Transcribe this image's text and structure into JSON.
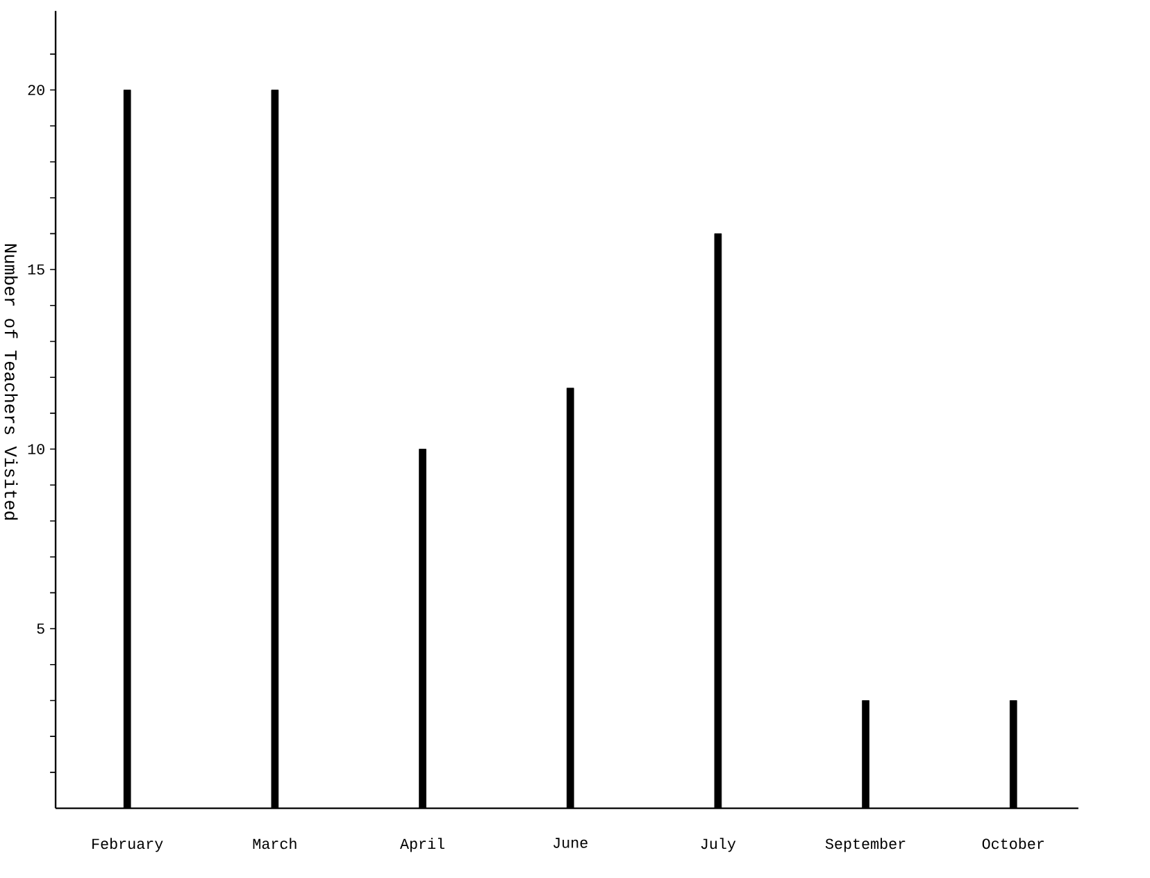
{
  "chart_data": {
    "type": "bar",
    "ylabel": "Number of Teachers Visited",
    "categories": [
      "February",
      "March",
      "April",
      "June",
      "July",
      "September",
      "October"
    ],
    "values": [
      20,
      20,
      10,
      11.7,
      16,
      3,
      3
    ],
    "color": "#000000",
    "ylim": [
      0,
      22.2
    ],
    "yticks": [
      {
        "value": 1,
        "label": null
      },
      {
        "value": 2,
        "label": null
      },
      {
        "value": 3,
        "label": null
      },
      {
        "value": 4,
        "label": null
      },
      5,
      {
        "value": 6,
        "label": null
      },
      {
        "value": 7,
        "label": null
      },
      {
        "value": 8,
        "label": null
      },
      {
        "value": 9,
        "label": null
      },
      10,
      {
        "value": 11,
        "label": null
      },
      {
        "value": 12,
        "label": null
      },
      {
        "value": 13,
        "label": null
      },
      {
        "value": 14,
        "label": null
      },
      15,
      {
        "value": 16,
        "label": null
      },
      {
        "value": 17,
        "label": null
      },
      {
        "value": 18,
        "label": null
      },
      {
        "value": 19,
        "label": null
      },
      20,
      {
        "value": 21,
        "label": null
      }
    ],
    "marker": "none"
  }
}
